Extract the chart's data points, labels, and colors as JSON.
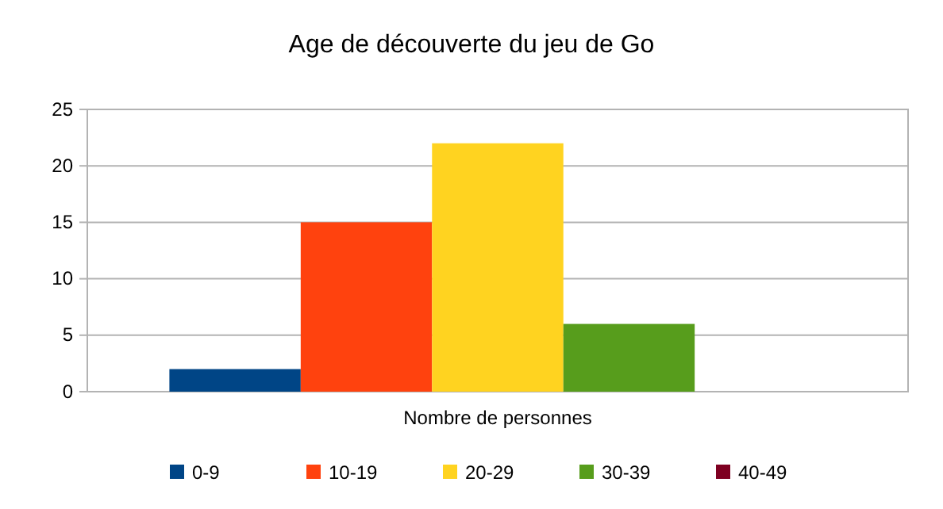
{
  "chart_data": {
    "type": "bar",
    "title": "Age de découverte du jeu de Go",
    "categories": [
      "Nombre de personnes"
    ],
    "series": [
      {
        "name": "0-9",
        "color": "#004586",
        "values": [
          2
        ]
      },
      {
        "name": "10-19",
        "color": "#ff420e",
        "values": [
          15
        ]
      },
      {
        "name": "20-29",
        "color": "#ffd320",
        "values": [
          22
        ]
      },
      {
        "name": "30-39",
        "color": "#579d1c",
        "values": [
          6
        ]
      },
      {
        "name": "40-49",
        "color": "#7e0021",
        "values": [
          0
        ]
      }
    ],
    "ylim": [
      0,
      25
    ],
    "yticks": [
      0,
      5,
      10,
      15,
      20,
      25
    ],
    "grid": "y",
    "legend": "bottom"
  }
}
